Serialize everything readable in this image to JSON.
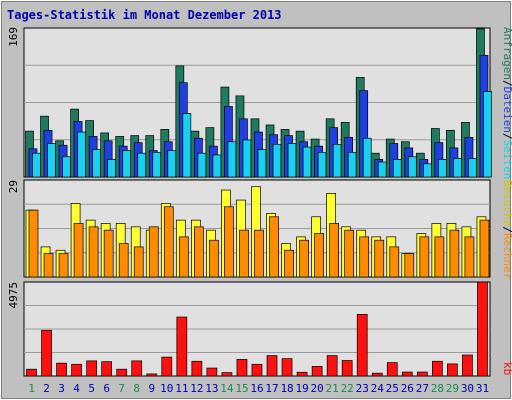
{
  "window": {
    "title": "Tages-Statistik im Monat Dezember 2013"
  },
  "colors": {
    "background": "#c0c0c0",
    "plot_bg": "#e0e0e0",
    "title": "#0000ad",
    "hits": "#1f7a5f",
    "files": "#1f3fe0",
    "pages": "#18d0f0",
    "visits": "#ffff30",
    "sites": "#ff8c00",
    "kbytes": "#ff1010",
    "day_normal": "#0000ad",
    "day_weekend": "#1a8a50"
  },
  "labels": {
    "top_max": "169",
    "mid_max": "29",
    "bot_max": "4975",
    "top_legend": {
      "l1": "Anfragen",
      "l2": "Dateien",
      "l3": "Seiten"
    },
    "mid_legend": {
      "l1": "Besuche",
      "l2": "Rechner"
    },
    "bot_legend": {
      "l1": "kb"
    },
    "sep": "/"
  },
  "chart_data": [
    {
      "type": "bar",
      "panel": "top",
      "ylim": [
        0,
        169
      ],
      "x": [
        1,
        2,
        3,
        4,
        5,
        6,
        7,
        8,
        9,
        10,
        11,
        12,
        13,
        14,
        15,
        16,
        17,
        18,
        19,
        20,
        21,
        22,
        23,
        24,
        25,
        26,
        27,
        28,
        29,
        30,
        31
      ],
      "series": [
        {
          "name": "Anfragen",
          "values": [
            52,
            69,
            41,
            77,
            64,
            50,
            46,
            47,
            47,
            54,
            126,
            52,
            56,
            102,
            92,
            66,
            59,
            54,
            52,
            43,
            66,
            62,
            113,
            27,
            43,
            40,
            27,
            55,
            53,
            62,
            168
          ]
        },
        {
          "name": "Dateien",
          "values": [
            32,
            53,
            36,
            63,
            46,
            41,
            35,
            39,
            30,
            40,
            107,
            44,
            35,
            80,
            66,
            51,
            48,
            47,
            40,
            35,
            56,
            45,
            98,
            20,
            38,
            33,
            20,
            39,
            33,
            45,
            138
          ]
        },
        {
          "name": "Seiten",
          "values": [
            27,
            38,
            23,
            51,
            31,
            20,
            30,
            27,
            28,
            30,
            72,
            27,
            25,
            40,
            42,
            31,
            37,
            38,
            34,
            28,
            37,
            28,
            44,
            17,
            20,
            23,
            15,
            20,
            21,
            21,
            97
          ]
        }
      ]
    },
    {
      "type": "bar",
      "panel": "middle",
      "ylim": [
        0,
        29
      ],
      "x": [
        1,
        2,
        3,
        4,
        5,
        6,
        7,
        8,
        9,
        10,
        11,
        12,
        13,
        14,
        15,
        16,
        17,
        18,
        19,
        20,
        21,
        22,
        23,
        24,
        25,
        26,
        27,
        28,
        29,
        30,
        31
      ],
      "series": [
        {
          "name": "Besuche",
          "values": [
            20,
            9,
            8,
            22,
            17,
            16,
            16,
            15,
            14,
            22,
            17,
            17,
            14,
            26,
            23,
            27,
            19,
            10,
            12,
            18,
            25,
            15,
            14,
            12,
            12,
            7,
            13,
            16,
            16,
            15,
            18
          ]
        },
        {
          "name": "Rechner",
          "values": [
            20,
            7,
            7,
            16,
            15,
            14,
            10,
            9,
            15,
            21,
            12,
            15,
            11,
            21,
            14,
            14,
            18,
            8,
            11,
            13,
            16,
            14,
            12,
            11,
            9,
            7,
            12,
            12,
            14,
            12,
            17
          ]
        }
      ]
    },
    {
      "type": "bar",
      "panel": "bottom",
      "ylim": [
        0,
        4975
      ],
      "x": [
        1,
        2,
        3,
        4,
        5,
        6,
        7,
        8,
        9,
        10,
        11,
        12,
        13,
        14,
        15,
        16,
        17,
        18,
        19,
        20,
        21,
        22,
        23,
        24,
        25,
        26,
        27,
        28,
        29,
        30,
        31
      ],
      "series": [
        {
          "name": "kb",
          "values": [
            360,
            2420,
            680,
            620,
            800,
            760,
            360,
            800,
            110,
            1000,
            3120,
            780,
            420,
            180,
            880,
            620,
            1080,
            920,
            200,
            510,
            1080,
            820,
            3260,
            150,
            710,
            210,
            210,
            780,
            640,
            1110,
            4975
          ]
        }
      ],
      "day_labels": [
        "1",
        "2",
        "3",
        "4",
        "5",
        "6",
        "7",
        "8",
        "9",
        "10",
        "11",
        "12",
        "13",
        "14",
        "15",
        "16",
        "17",
        "18",
        "19",
        "20",
        "21",
        "22",
        "23",
        "24",
        "25",
        "26",
        "27",
        "28",
        "29",
        "30",
        "31"
      ],
      "weekend_days": [
        1,
        7,
        8,
        14,
        15,
        21,
        22,
        28,
        29
      ]
    }
  ]
}
